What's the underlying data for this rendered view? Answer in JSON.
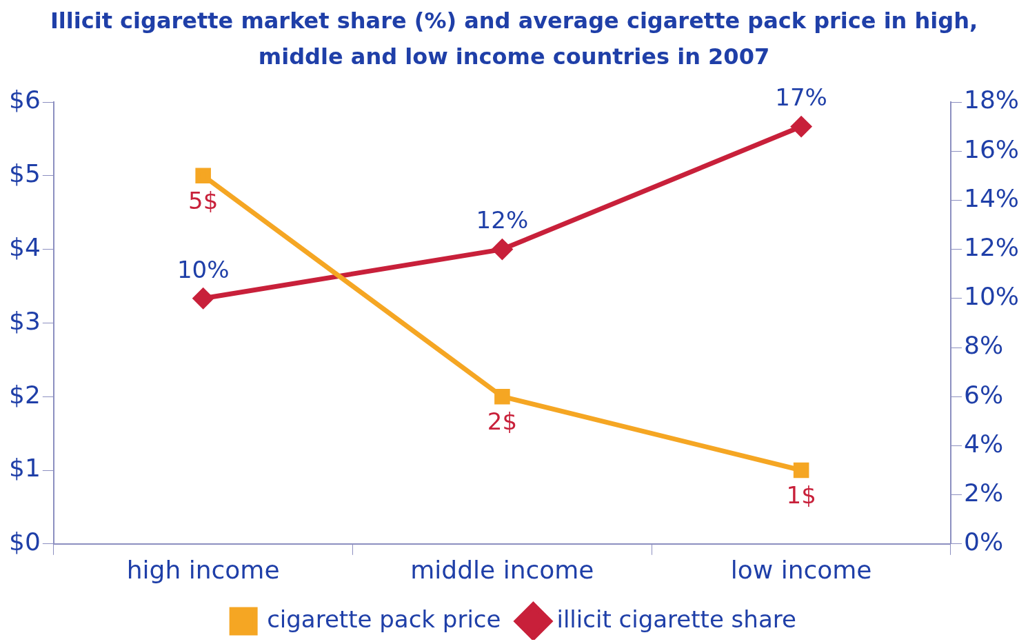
{
  "chart_data": {
    "type": "line",
    "title": "Illicit cigarette market share (%) and average cigarette pack price in high, middle and low income countries in 2007",
    "categories": [
      "high income",
      "middle income",
      "low income"
    ],
    "series": [
      {
        "name": "cigarette pack price",
        "color": "#f5a623",
        "values": [
          5,
          2,
          1
        ],
        "marker": "square",
        "value_labels": [
          "5$",
          "2$",
          "1$"
        ]
      },
      {
        "name": "illicit cigarette share",
        "color": "#c8203a",
        "values": [
          10,
          12,
          17
        ],
        "marker": "diamond",
        "axis": "y2",
        "value_labels": [
          "10%",
          "12%",
          "17%"
        ]
      }
    ],
    "ylim": [
      0,
      6
    ],
    "yticks": [
      {
        "value": 0,
        "label": "$0"
      },
      {
        "value": 1,
        "label": "$1"
      },
      {
        "value": 2,
        "label": "$2"
      },
      {
        "value": 3,
        "label": "$3"
      },
      {
        "value": 4,
        "label": "$4"
      },
      {
        "value": 5,
        "label": "$5"
      },
      {
        "value": 6,
        "label": "$6"
      }
    ],
    "y2lim": [
      0,
      18
    ],
    "y2ticks": [
      {
        "value": 0,
        "label": "0%"
      },
      {
        "value": 2,
        "label": "2%"
      },
      {
        "value": 4,
        "label": "4%"
      },
      {
        "value": 6,
        "label": "6%"
      },
      {
        "value": 8,
        "label": "8%"
      },
      {
        "value": 10,
        "label": "10%"
      },
      {
        "value": 12,
        "label": "12%"
      },
      {
        "value": 14,
        "label": "14%"
      },
      {
        "value": 16,
        "label": "16%"
      },
      {
        "value": 18,
        "label": "18%"
      }
    ],
    "grid": false,
    "legend": "bottom",
    "line_style": "solid"
  }
}
